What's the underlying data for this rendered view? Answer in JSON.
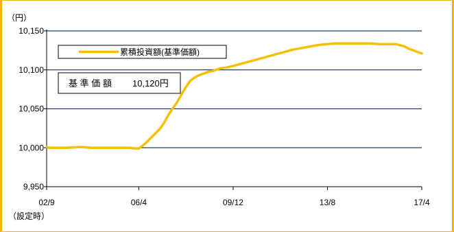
{
  "chart_data": {
    "type": "line",
    "y_unit": "（円）",
    "ylim": [
      9950,
      10150
    ],
    "y_ticks": [
      "10,150",
      "10,100",
      "10,050",
      "10,000",
      "9,950"
    ],
    "y_tick_values": [
      10150,
      10100,
      10050,
      10000,
      9950
    ],
    "x_ticks": [
      "02/9",
      "06/4",
      "09/12",
      "13/8",
      "17/4"
    ],
    "x_tick_values": [
      "2002-09",
      "2006-04",
      "2009-12",
      "2013-08",
      "2017-04"
    ],
    "x_first_note": "（設定時）",
    "grid": true,
    "legend": {
      "placement": "top-left",
      "entries": [
        "累積投資額(基準価額)"
      ]
    },
    "info_box": {
      "label": "基 準 価 額",
      "value": "10,120円"
    },
    "series": [
      {
        "name": "累積投資額(基準価額)",
        "color": "#f5c000",
        "x": [
          "2002-09",
          "2002-10",
          "2002-11",
          "2003-06",
          "2004-01",
          "2004-06",
          "2004-12",
          "2005-03",
          "2005-06",
          "2005-09",
          "2005-12",
          "2006-02",
          "2006-04",
          "2006-06",
          "2006-08",
          "2006-10",
          "2006-12",
          "2007-02",
          "2007-04",
          "2007-06",
          "2007-08",
          "2007-10",
          "2007-12",
          "2008-02",
          "2008-04",
          "2008-06",
          "2008-08",
          "2008-10",
          "2008-12",
          "2009-03",
          "2009-06",
          "2009-09",
          "2009-12",
          "2010-04",
          "2010-08",
          "2010-12",
          "2011-04",
          "2011-08",
          "2011-12",
          "2012-04",
          "2012-08",
          "2012-12",
          "2013-04",
          "2013-08",
          "2013-12",
          "2014-04",
          "2014-08",
          "2014-12",
          "2015-04",
          "2015-08",
          "2015-12",
          "2016-04",
          "2016-08",
          "2016-10",
          "2016-12",
          "2017-02",
          "2017-04"
        ],
        "values": [
          10001,
          10000,
          10000,
          10000,
          10001,
          10000,
          10000,
          10000,
          10000,
          10000,
          10000,
          9999,
          9999,
          10003,
          10008,
          10014,
          10019,
          10025,
          10033,
          10043,
          10051,
          10059,
          10069,
          10078,
          10086,
          10090,
          10093,
          10095,
          10097,
          10099,
          10102,
          10103,
          10105,
          10108,
          10111,
          10114,
          10117,
          10120,
          10123,
          10126,
          10128,
          10130,
          10132,
          10133,
          10134,
          10134,
          10134,
          10134,
          10134,
          10133,
          10133,
          10133,
          10130,
          10127,
          10125,
          10123,
          10121
        ]
      }
    ]
  }
}
